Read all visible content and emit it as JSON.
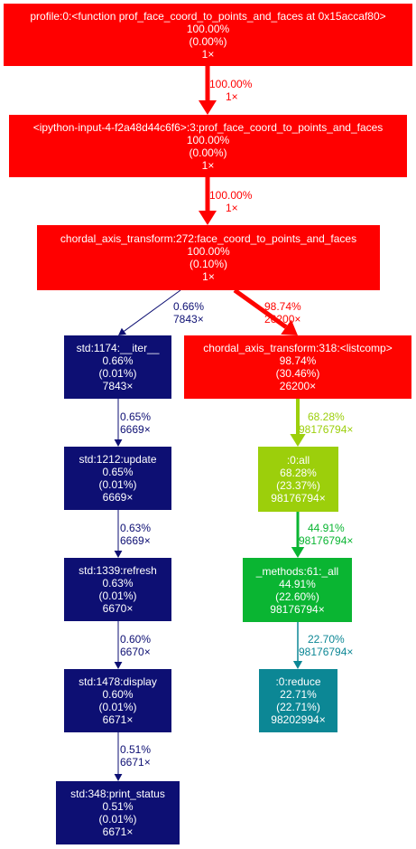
{
  "nodes": {
    "profile": {
      "lines": [
        "profile:0:<function prof_face_coord_to_points_and_faces at 0x15accaf80>",
        "100.00%",
        "(0.00%)",
        "1×"
      ],
      "color": "#ff0000"
    },
    "ipython": {
      "lines": [
        "<ipython-input-4-f2a48d44c6f6>:3:prof_face_coord_to_points_and_faces",
        "100.00%",
        "(0.00%)",
        "1×"
      ],
      "color": "#ff0000"
    },
    "chordal272": {
      "lines": [
        "chordal_axis_transform:272:face_coord_to_points_and_faces",
        "100.00%",
        "(0.10%)",
        "1×"
      ],
      "color": "#ff0000"
    },
    "iter": {
      "lines": [
        "std:1174:__iter__",
        "0.66%",
        "(0.01%)",
        "7843×"
      ],
      "color": "#0d0f73"
    },
    "listcomp": {
      "lines": [
        "chordal_axis_transform:318:<listcomp>",
        "98.74%",
        "(30.46%)",
        "26200×"
      ],
      "color": "#fe0400"
    },
    "update": {
      "lines": [
        "std:1212:update",
        "0.65%",
        "(0.01%)",
        "6669×"
      ],
      "color": "#0d0f73"
    },
    "all0": {
      "lines": [
        ":0:all",
        "68.28%",
        "(23.37%)",
        "98176794×"
      ],
      "color": "#9ccf0b"
    },
    "refresh": {
      "lines": [
        "std:1339:refresh",
        "0.63%",
        "(0.01%)",
        "6670×"
      ],
      "color": "#0d0f73"
    },
    "methods": {
      "lines": [
        "_methods:61:_all",
        "44.91%",
        "(22.60%)",
        "98176794×"
      ],
      "color": "#0ab532"
    },
    "display": {
      "lines": [
        "std:1478:display",
        "0.60%",
        "(0.01%)",
        "6671×"
      ],
      "color": "#0d0f73"
    },
    "reduce": {
      "lines": [
        ":0:reduce",
        "22.71%",
        "(22.71%)",
        "98202994×"
      ],
      "color": "#0c8795"
    },
    "print": {
      "lines": [
        "std:348:print_status",
        "0.51%",
        "(0.01%)",
        "6671×"
      ],
      "color": "#0d0f73"
    }
  },
  "edges": [
    {
      "id": "e1",
      "from": "profile",
      "to": "ipython",
      "label": [
        "100.00%",
        "1×"
      ],
      "color": "#ff0000"
    },
    {
      "id": "e2",
      "from": "ipython",
      "to": "chordal272",
      "label": [
        "100.00%",
        "1×"
      ],
      "color": "#ff0000"
    },
    {
      "id": "e3",
      "from": "chordal272",
      "to": "iter",
      "label": [
        "0.66%",
        "7843×"
      ],
      "color": "#0d0f73"
    },
    {
      "id": "e4",
      "from": "chordal272",
      "to": "listcomp",
      "label": [
        "98.74%",
        "26200×"
      ],
      "color": "#fe0400"
    },
    {
      "id": "e5",
      "from": "iter",
      "to": "update",
      "label": [
        "0.65%",
        "6669×"
      ],
      "color": "#0d0f73"
    },
    {
      "id": "e6",
      "from": "listcomp",
      "to": "all0",
      "label": [
        "68.28%",
        "98176794×"
      ],
      "color": "#9ccf0b"
    },
    {
      "id": "e7",
      "from": "update",
      "to": "refresh",
      "label": [
        "0.63%",
        "6669×"
      ],
      "color": "#0d0f73"
    },
    {
      "id": "e8",
      "from": "all0",
      "to": "methods",
      "label": [
        "44.91%",
        "98176794×"
      ],
      "color": "#0ab532"
    },
    {
      "id": "e9",
      "from": "refresh",
      "to": "display",
      "label": [
        "0.60%",
        "6670×"
      ],
      "color": "#0d0f73"
    },
    {
      "id": "e10",
      "from": "methods",
      "to": "reduce",
      "label": [
        "22.70%",
        "98176794×"
      ],
      "color": "#0c8795"
    },
    {
      "id": "e11",
      "from": "display",
      "to": "print",
      "label": [
        "0.51%",
        "6671×"
      ],
      "color": "#0d0f73"
    }
  ]
}
